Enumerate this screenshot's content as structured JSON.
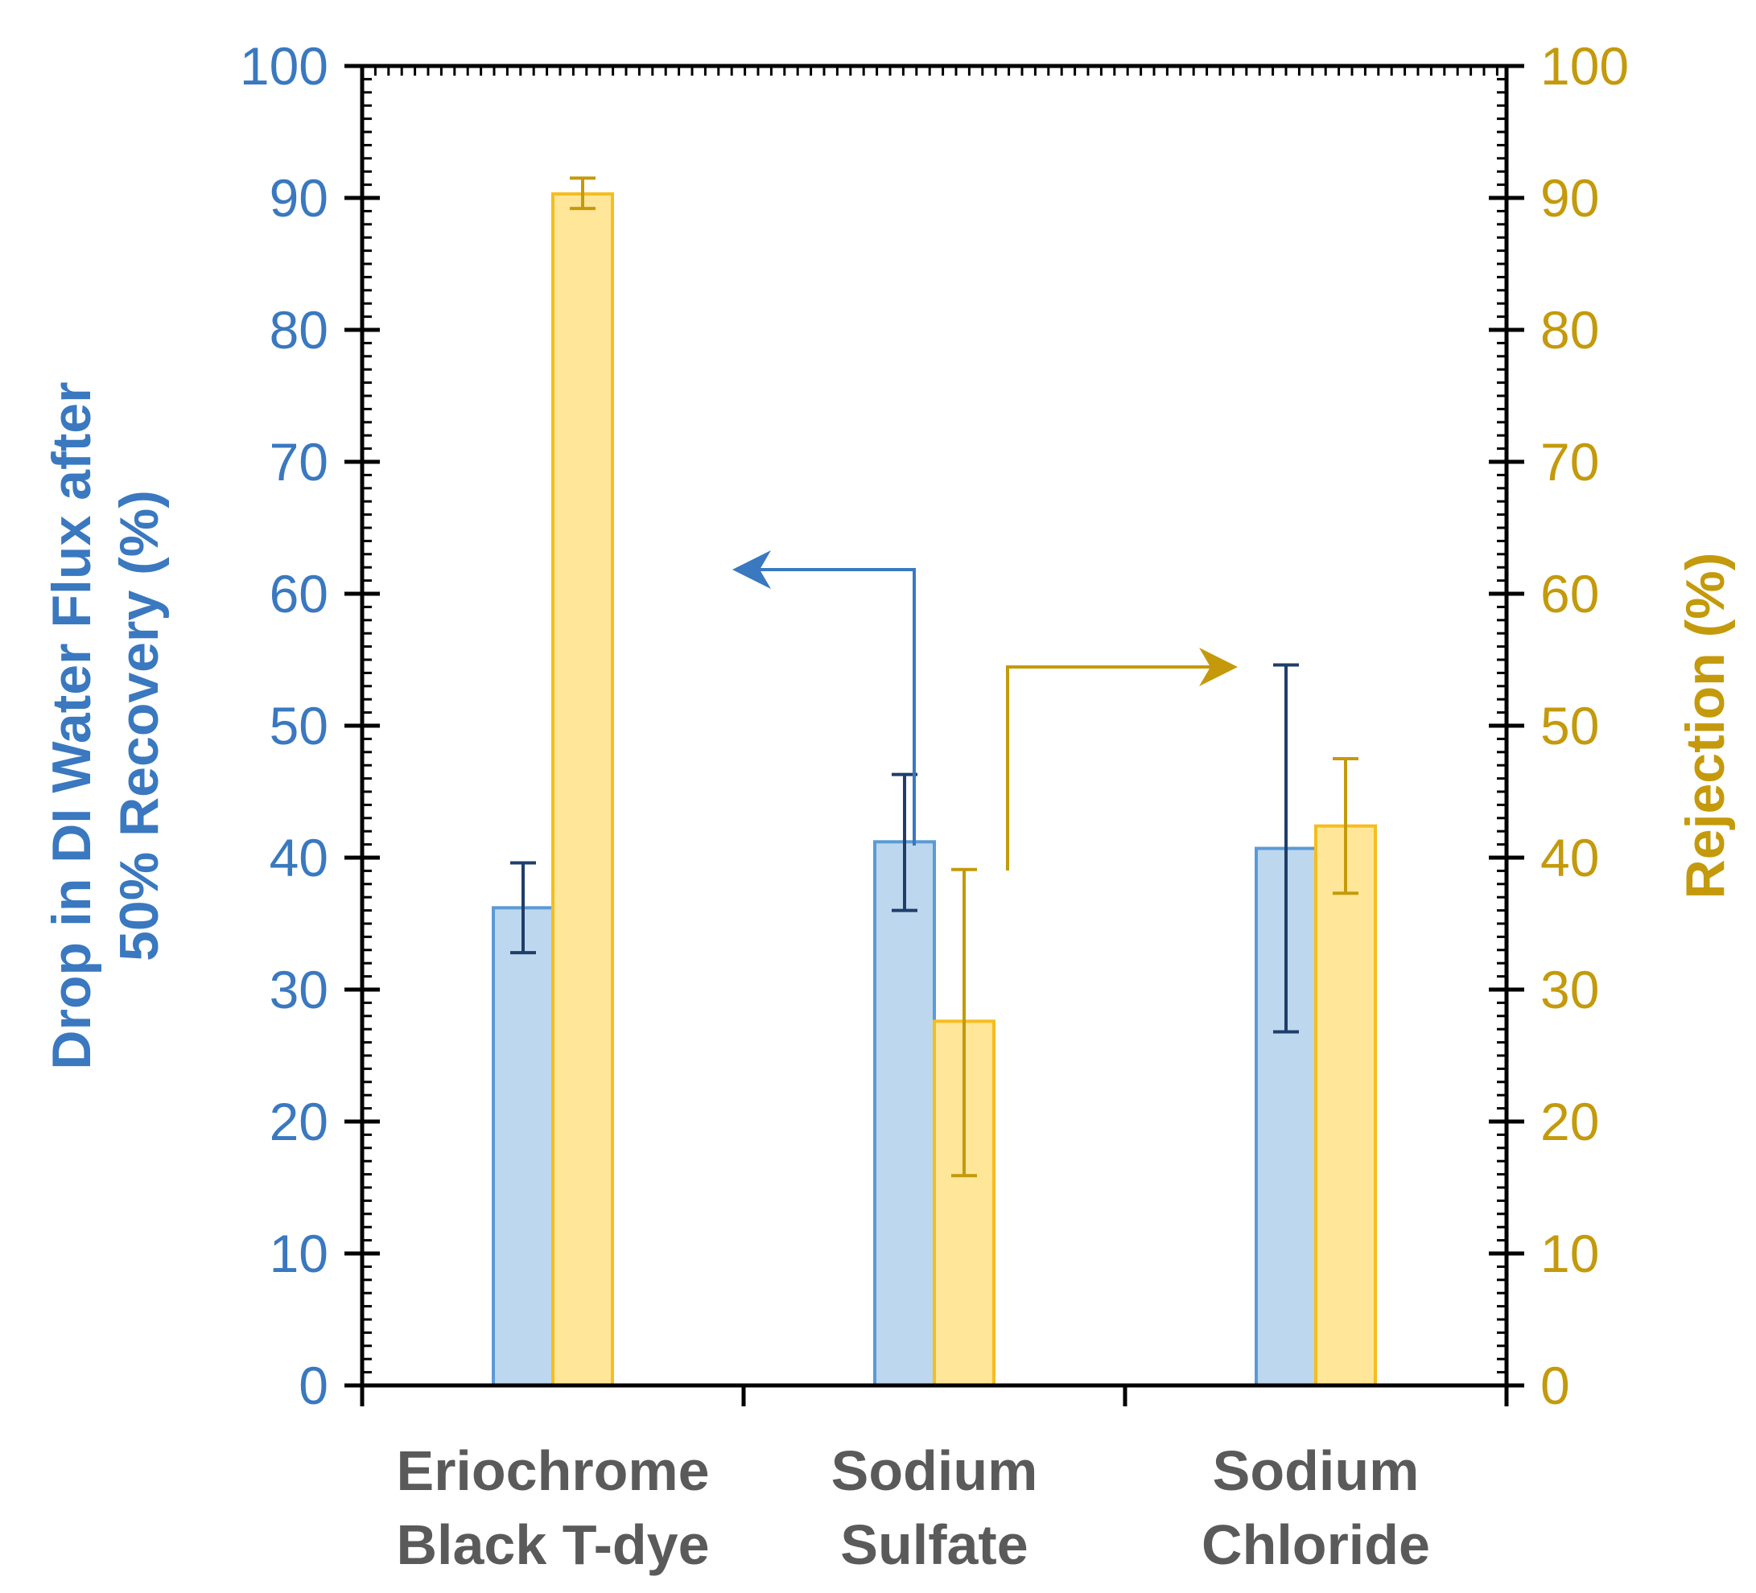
{
  "chart_data": {
    "type": "bar",
    "categories": [
      [
        "Eriochrome",
        "Black T-dye"
      ],
      [
        "Sodium",
        "Sulfate"
      ],
      [
        "Sodium",
        "Chloride"
      ]
    ],
    "series": [
      {
        "name": "Drop in DI Water Flux after 50% Recovery (%)",
        "axis": "left",
        "values": [
          36.2,
          41.2,
          40.7
        ],
        "error_low": [
          32.8,
          36.0,
          26.8
        ],
        "error_high": [
          39.6,
          46.3,
          54.6
        ],
        "fill": "#bdd7ee",
        "stroke": "#5b9bd5",
        "error_color": "#1f3e6a"
      },
      {
        "name": "Rejection (%)",
        "axis": "right",
        "values": [
          90.3,
          27.6,
          42.4
        ],
        "error_low": [
          89.2,
          15.9,
          37.3
        ],
        "error_high": [
          91.5,
          39.1,
          47.5
        ],
        "fill": "#ffe699",
        "stroke": "#f5bd1f",
        "error_color": "#c49a0c"
      }
    ],
    "y_left": {
      "label_lines": [
        "Drop in DI Water Flux after",
        "50% Recovery (%)"
      ],
      "ylim": [
        0,
        100
      ],
      "ticks": [
        0,
        10,
        20,
        30,
        40,
        50,
        60,
        70,
        80,
        90,
        100
      ],
      "color": "#3a78c0"
    },
    "y_right": {
      "label": "Rejection (%)",
      "ylim": [
        0,
        100
      ],
      "ticks": [
        0,
        10,
        20,
        30,
        40,
        50,
        60,
        70,
        80,
        90,
        100
      ],
      "color": "#c49a0c"
    },
    "annotations": [
      {
        "type": "arrow",
        "points_to": "left-axis",
        "color": "#3a78c0"
      },
      {
        "type": "arrow",
        "points_to": "right-axis",
        "color": "#c49a0c"
      }
    ],
    "grid": false,
    "legend": "none"
  }
}
